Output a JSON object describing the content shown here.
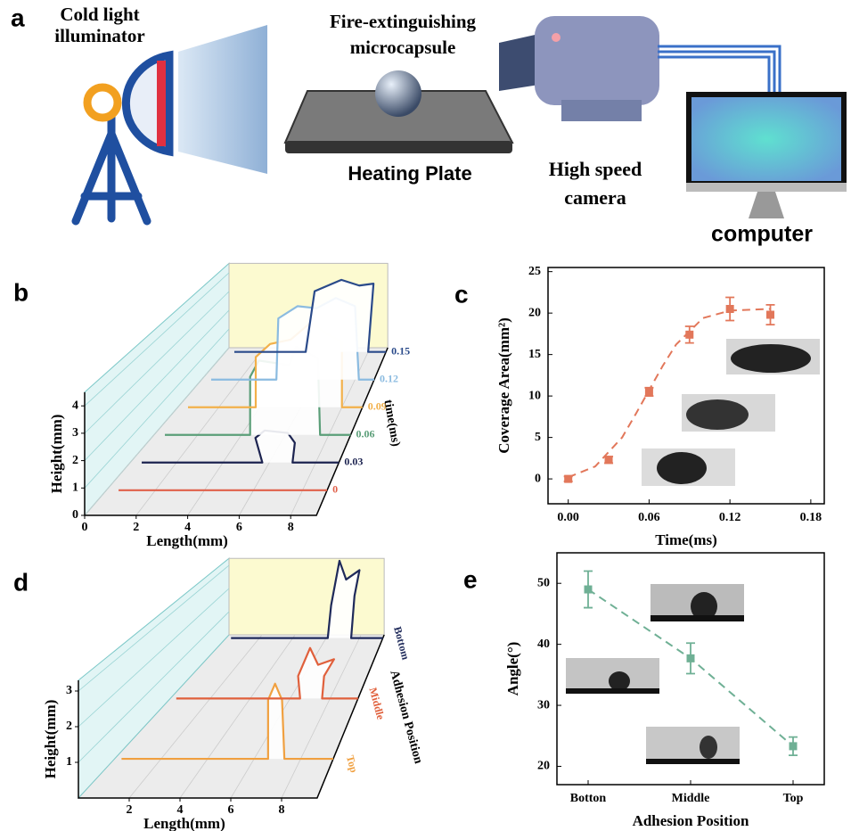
{
  "diagram": {
    "label": "a",
    "illuminator": [
      "Cold light",
      "illuminator"
    ],
    "microcapsule": [
      "Fire-extinguishing",
      "microcapsule"
    ],
    "plate": "Heating Plate",
    "camera": [
      "High speed",
      "camera"
    ],
    "computer": "computer"
  },
  "chart_data": [
    {
      "panel": "b",
      "type": "line3d",
      "xlabel": "Length(mm)",
      "ylabel": "Height(mm)",
      "zlabel": "time(ms)",
      "xlim": [
        0,
        9
      ],
      "ylim": [
        0,
        4.5
      ],
      "xticks": [
        0,
        2,
        4,
        6,
        8
      ],
      "yticks": [
        0,
        1,
        2,
        3,
        4
      ],
      "series": [
        {
          "name": "0",
          "color": "#e0604a",
          "x": [
            0.5,
            9
          ],
          "values": [
            0,
            0
          ]
        },
        {
          "name": "0.03",
          "color": "#1c2350",
          "x": [
            0.5,
            5.7,
            5.4,
            5.8,
            6.8,
            7.1,
            7.0,
            9
          ],
          "values": [
            0,
            0,
            1.0,
            1.3,
            1.2,
            0.8,
            0,
            0
          ]
        },
        {
          "name": "0.06",
          "color": "#5a9e78",
          "x": [
            0.5,
            4.4,
            4.4,
            4.8,
            6.2,
            6.5,
            7.5,
            7.6,
            9
          ],
          "values": [
            0,
            0,
            2.5,
            3.2,
            3.0,
            3.8,
            3.3,
            0,
            0
          ]
        },
        {
          "name": "0.09",
          "color": "#f2b04a",
          "x": [
            0.5,
            3.8,
            3.8,
            4.5,
            5.5,
            6.5,
            7.2,
            8.0,
            8.0,
            9
          ],
          "values": [
            0,
            0,
            2.3,
            2.9,
            3.1,
            3.9,
            3.4,
            3.0,
            0,
            0
          ]
        },
        {
          "name": "0.12",
          "color": "#8bbbe0",
          "x": [
            0.5,
            3.9,
            4.0,
            5.0,
            6.0,
            7.0,
            8.0,
            8.2,
            9
          ],
          "values": [
            0,
            0,
            3.0,
            3.6,
            3.5,
            4.0,
            3.6,
            0,
            0
          ]
        },
        {
          "name": "0.15",
          "color": "#2a4a8a",
          "x": [
            0.5,
            4.5,
            5.0,
            6.5,
            7.5,
            8.3,
            8.0,
            9
          ],
          "values": [
            0,
            0,
            3.2,
            3.8,
            3.5,
            3.6,
            0,
            0
          ]
        }
      ]
    },
    {
      "panel": "c",
      "type": "scatter",
      "xlabel": "Time(ms)",
      "ylabel": "Coverage Area(mm²)",
      "color": "#e2775a",
      "x": [
        0,
        0.03,
        0.06,
        0.09,
        0.12,
        0.15
      ],
      "values": [
        0,
        2.3,
        10.5,
        17.4,
        20.5,
        19.8
      ],
      "errors": [
        0.3,
        0.4,
        0.5,
        1.0,
        1.4,
        1.2
      ],
      "fit": {
        "x": [
          0,
          0.02,
          0.04,
          0.05,
          0.06,
          0.07,
          0.08,
          0.1,
          0.12,
          0.15
        ],
        "values": [
          0.2,
          1.5,
          5,
          7.8,
          10.7,
          13.6,
          16.2,
          19.4,
          20.3,
          20.5
        ]
      },
      "xlim": [
        -0.015,
        0.19
      ],
      "ylim": [
        -3,
        25.5
      ],
      "xticks": [
        {
          "value": 0,
          "label": "0.00"
        },
        {
          "value": 0.06,
          "label": "0.06"
        },
        {
          "value": 0.12,
          "label": "0.12"
        },
        {
          "value": 0.18,
          "label": "0.18"
        }
      ],
      "yticks": [
        0,
        5,
        10,
        15,
        20,
        25
      ]
    },
    {
      "panel": "d",
      "type": "line3d",
      "xlabel": "Length(mm)",
      "ylabel": "Height(mm)",
      "zlabel": "Adhesion Position",
      "xlim": [
        0,
        9.4
      ],
      "ylim": [
        0,
        3.3
      ],
      "xticks": [
        2,
        4,
        6,
        8
      ],
      "yticks": [
        1,
        2,
        3
      ],
      "series": [
        {
          "name": "Top",
          "color": "#f0a040",
          "x": [
            0.3,
            6.6,
            6.6,
            6.9,
            7.2,
            7.3,
            9.4
          ],
          "values": [
            0,
            0,
            1.8,
            2.3,
            1.8,
            0,
            0
          ]
        },
        {
          "name": "Middle",
          "color": "#e0603c",
          "x": [
            0.3,
            6.5,
            6.4,
            7.0,
            7.4,
            8.2,
            7.7,
            7.6,
            9.4
          ],
          "values": [
            0,
            0,
            0.8,
            1.8,
            1.2,
            1.4,
            0.8,
            0,
            0
          ]
        },
        {
          "name": "Bottom",
          "color": "#1f2a5a",
          "x": [
            0.3,
            6.1,
            6.3,
            6.8,
            7.2,
            8.0,
            7.7,
            7.5,
            9.4
          ],
          "values": [
            0,
            0,
            1.4,
            3.3,
            2.5,
            2.9,
            1.8,
            0,
            0
          ]
        }
      ]
    },
    {
      "panel": "e",
      "type": "category-scatter",
      "xlabel": "Adhesion Position",
      "ylabel": "Angle(°)",
      "color": "#6fb095",
      "categories": [
        "Botton",
        "Middle",
        "Top"
      ],
      "values": [
        49,
        37.7,
        23.3
      ],
      "errors": [
        3,
        2.5,
        1.5
      ],
      "ylim": [
        17,
        55
      ],
      "yticks": [
        20,
        30,
        40,
        50
      ]
    }
  ]
}
